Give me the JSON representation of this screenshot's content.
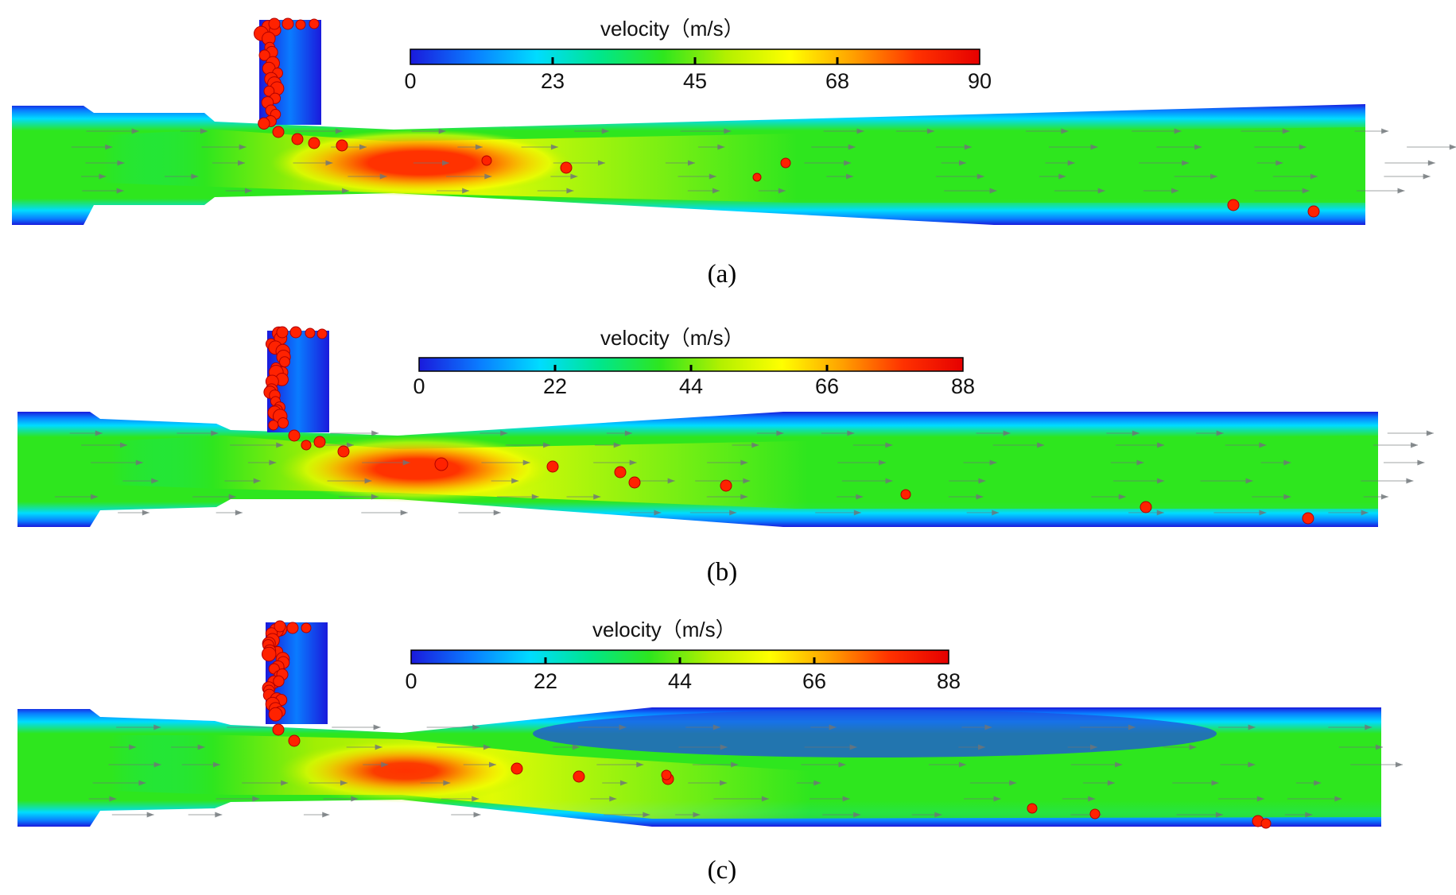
{
  "colormap": {
    "stops": [
      "#1a1adc",
      "#0a7cff",
      "#00dcff",
      "#00e68c",
      "#2ee61e",
      "#b4f000",
      "#ffff00",
      "#ffa000",
      "#ff3200",
      "#e60000"
    ],
    "particle_color": "#ff2200",
    "particle_edge": "#b00000",
    "vector_color": "#6e7478"
  },
  "panels": [
    {
      "caption": "(a)",
      "colorbar_title": "velocity（m/s）",
      "colorbar_ticks": [
        "0",
        "23",
        "45",
        "68",
        "90"
      ],
      "vmax": 90
    },
    {
      "caption": "(b)",
      "colorbar_title": "velocity（m/s）",
      "colorbar_ticks": [
        "0",
        "22",
        "44",
        "66",
        "88"
      ],
      "vmax": 88
    },
    {
      "caption": "(c)",
      "colorbar_title": "velocity（m/s）",
      "colorbar_ticks": [
        "0",
        "22",
        "44",
        "66",
        "88"
      ],
      "vmax": 88
    }
  ]
}
